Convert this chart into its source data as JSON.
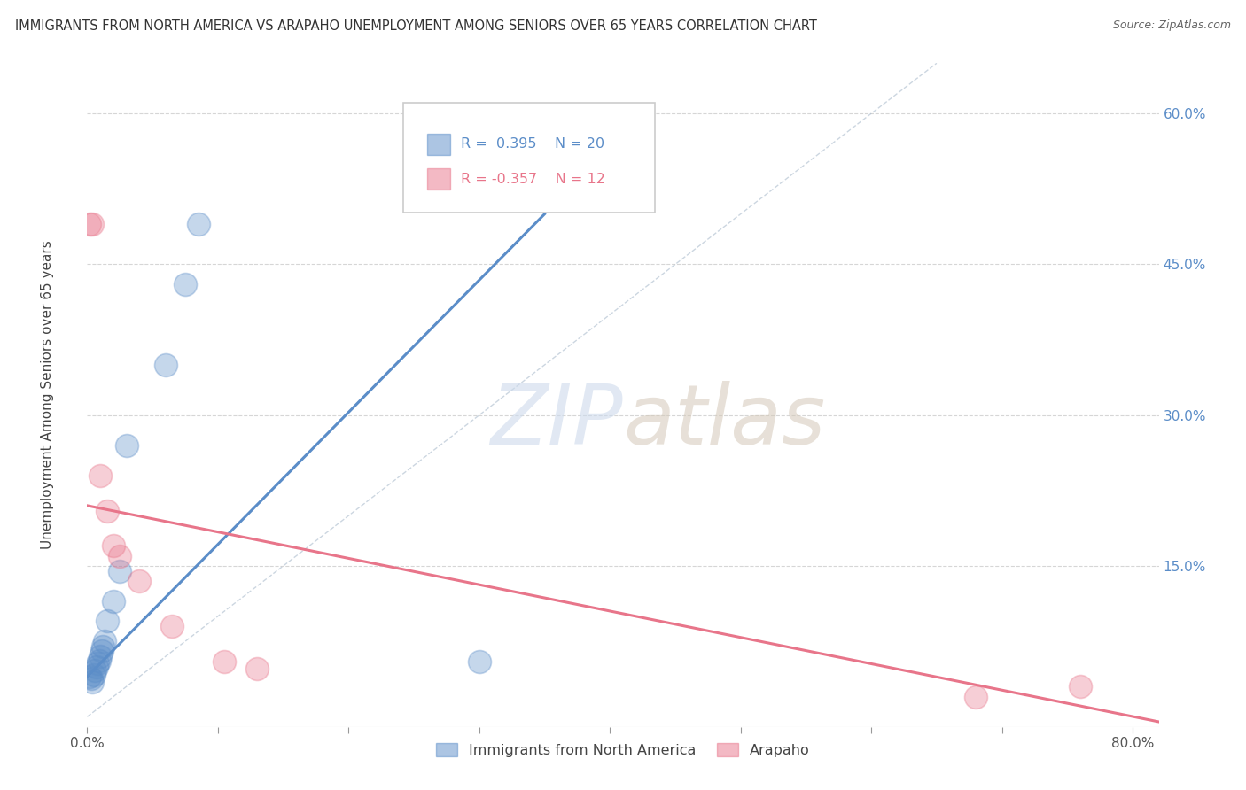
{
  "title": "IMMIGRANTS FROM NORTH AMERICA VS ARAPAHO UNEMPLOYMENT AMONG SENIORS OVER 65 YEARS CORRELATION CHART",
  "source": "Source: ZipAtlas.com",
  "ylabel": "Unemployment Among Seniors over 65 years",
  "xlim": [
    0.0,
    0.82
  ],
  "ylim": [
    -0.01,
    0.65
  ],
  "xticks": [
    0.0,
    0.1,
    0.2,
    0.3,
    0.4,
    0.5,
    0.6,
    0.7,
    0.8
  ],
  "xticklabels": [
    "0.0%",
    "",
    "",
    "",
    "",
    "",
    "",
    "",
    "80.0%"
  ],
  "ytick_positions": [
    0.0,
    0.15,
    0.3,
    0.45,
    0.6
  ],
  "ytick_labels": [
    "",
    "15.0%",
    "30.0%",
    "45.0%",
    "60.0%"
  ],
  "blue_r": "0.395",
  "blue_n": "20",
  "pink_r": "-0.357",
  "pink_n": "12",
  "blue_color": "#5b8dc8",
  "pink_color": "#e8758a",
  "blue_scatter": [
    [
      0.002,
      0.04
    ],
    [
      0.003,
      0.038
    ],
    [
      0.004,
      0.035
    ],
    [
      0.005,
      0.042
    ],
    [
      0.006,
      0.046
    ],
    [
      0.007,
      0.05
    ],
    [
      0.008,
      0.053
    ],
    [
      0.009,
      0.056
    ],
    [
      0.01,
      0.06
    ],
    [
      0.011,
      0.065
    ],
    [
      0.012,
      0.07
    ],
    [
      0.013,
      0.075
    ],
    [
      0.015,
      0.095
    ],
    [
      0.02,
      0.115
    ],
    [
      0.025,
      0.145
    ],
    [
      0.03,
      0.27
    ],
    [
      0.06,
      0.35
    ],
    [
      0.075,
      0.43
    ],
    [
      0.085,
      0.49
    ],
    [
      0.3,
      0.055
    ]
  ],
  "pink_scatter": [
    [
      0.002,
      0.49
    ],
    [
      0.004,
      0.49
    ],
    [
      0.01,
      0.24
    ],
    [
      0.015,
      0.205
    ],
    [
      0.02,
      0.17
    ],
    [
      0.025,
      0.16
    ],
    [
      0.04,
      0.135
    ],
    [
      0.065,
      0.09
    ],
    [
      0.105,
      0.055
    ],
    [
      0.13,
      0.048
    ],
    [
      0.68,
      0.02
    ],
    [
      0.76,
      0.03
    ]
  ],
  "blue_line_x": [
    0.0,
    0.35
  ],
  "blue_line_y": [
    0.04,
    0.5
  ],
  "pink_line_x": [
    0.0,
    0.82
  ],
  "pink_line_y": [
    0.21,
    -0.005
  ],
  "diag_line_x": [
    0.0,
    0.65
  ],
  "diag_line_y": [
    0.0,
    0.65
  ],
  "watermark_zip": "ZIP",
  "watermark_atlas": "atlas",
  "legend_labels": [
    "Immigrants from North America",
    "Arapaho"
  ],
  "background_color": "#ffffff",
  "grid_color": "#cccccc"
}
